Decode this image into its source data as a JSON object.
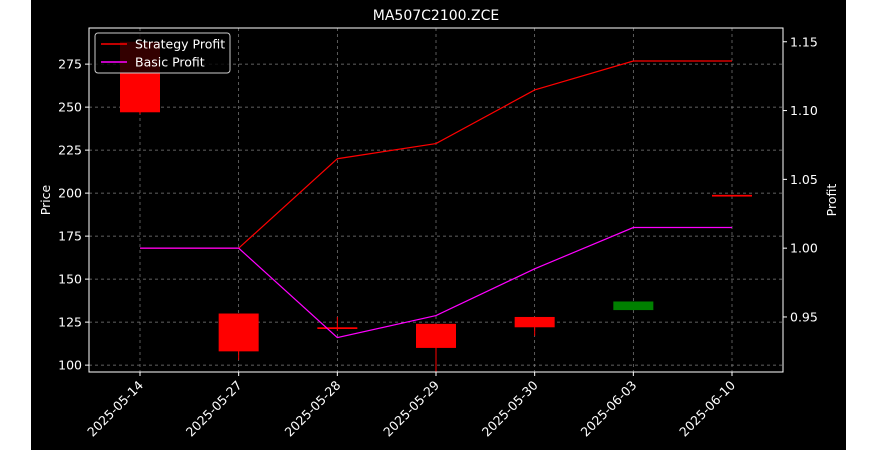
{
  "colors": {
    "background": "#000000",
    "page": "#ffffff",
    "axes": "#ffffff",
    "grid": "#808080",
    "up_candle": "#008000",
    "down_candle": "#ff0000",
    "strategy_line": "#ff0000",
    "basic_line": "#ff00ff"
  },
  "chart_data": {
    "type": "line",
    "title": "MA507C2100.ZCE",
    "categories": [
      "2025-05-14",
      "2025-05-27",
      "2025-05-28",
      "2025-05-29",
      "2025-05-30",
      "2025-06-03",
      "2025-06-10"
    ],
    "left_axis": {
      "label": "Price",
      "ylim": [
        96,
        296
      ],
      "ticks": [
        100,
        125,
        150,
        175,
        200,
        225,
        250,
        275
      ]
    },
    "right_axis": {
      "label": "Profit",
      "ylim": [
        0.91,
        1.16
      ],
      "ticks": [
        0.95,
        1.0,
        1.05,
        1.1,
        1.15
      ],
      "tick_labels": [
        "0.95",
        "1.00",
        "1.05",
        "1.10",
        "1.15"
      ]
    },
    "candles": [
      {
        "date": "2025-05-14",
        "open": 288,
        "high": 290,
        "low": 246,
        "close": 247
      },
      {
        "date": "2025-05-27",
        "open": 130,
        "high": 130,
        "low": 103,
        "close": 108
      },
      {
        "date": "2025-05-28",
        "open": 122,
        "high": 128,
        "low": 120,
        "close": 121
      },
      {
        "date": "2025-05-29",
        "open": 124,
        "high": 124,
        "low": 96,
        "close": 110
      },
      {
        "date": "2025-05-30",
        "open": 128,
        "high": 128,
        "low": 117,
        "close": 122
      },
      {
        "date": "2025-06-03",
        "open": 132,
        "high": 137,
        "low": 132,
        "close": 137
      },
      {
        "date": "2025-06-10",
        "open": 199,
        "high": 199,
        "low": 198,
        "close": 198
      }
    ],
    "series": [
      {
        "name": "Strategy Profit",
        "axis": "right",
        "values": [
          1.0,
          1.0,
          1.065,
          1.076,
          1.115,
          1.136,
          1.136
        ]
      },
      {
        "name": "Basic Profit",
        "axis": "right",
        "values": [
          1.0,
          1.0,
          0.935,
          0.951,
          0.985,
          1.015,
          1.015
        ]
      }
    ],
    "grid": true,
    "legend": "top-left"
  }
}
